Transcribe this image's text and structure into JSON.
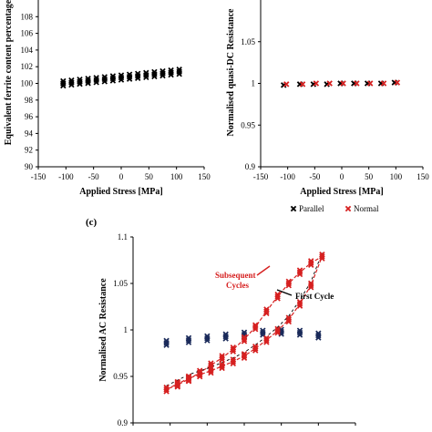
{
  "chart_data": [
    {
      "id": "a",
      "type": "scatter",
      "panel_label": "",
      "xlabel": "Applied Stress [MPa]",
      "ylabel": "Equivalent ferrite content percentage",
      "xlim": [
        -150,
        150
      ],
      "ylim": [
        90,
        110
      ],
      "x_ticks": [
        "-150",
        "-100",
        "-50",
        "0",
        "50",
        "100",
        "150"
      ],
      "y_ticks": [
        "90",
        "92",
        "94",
        "96",
        "98",
        "100",
        "102",
        "104",
        "106",
        "108"
      ],
      "series": [
        {
          "color": "#000000",
          "points": [
            [
              -105,
              100.0
            ],
            [
              -90,
              100.1
            ],
            [
              -75,
              100.2
            ],
            [
              -60,
              100.3
            ],
            [
              -45,
              100.4
            ],
            [
              -30,
              100.5
            ],
            [
              -15,
              100.6
            ],
            [
              0,
              100.7
            ],
            [
              15,
              100.8
            ],
            [
              30,
              100.9
            ],
            [
              45,
              101.0
            ],
            [
              60,
              101.1
            ],
            [
              75,
              101.2
            ],
            [
              90,
              101.3
            ],
            [
              105,
              101.4
            ]
          ]
        }
      ]
    },
    {
      "id": "b",
      "type": "scatter",
      "panel_label": "",
      "xlabel": "Applied Stress [MPa]",
      "ylabel": "Normalised quasi-DC Resistance",
      "xlim": [
        -150,
        150
      ],
      "ylim": [
        0.9,
        1.1
      ],
      "x_ticks": [
        "-150",
        "-100",
        "-50",
        "0",
        "50",
        "100",
        "150"
      ],
      "y_ticks": [
        "0.9",
        "0.95",
        "1",
        "1.05"
      ],
      "legend": [
        {
          "label": "Parallel",
          "color": "#000000"
        },
        {
          "label": "Normal",
          "color": "#d62020"
        }
      ],
      "series": [
        {
          "name": "Parallel",
          "color": "#000000",
          "points": [
            [
              -105,
              0.998
            ],
            [
              -75,
              0.999
            ],
            [
              -50,
              0.999
            ],
            [
              -25,
              0.999
            ],
            [
              0,
              1.0
            ],
            [
              25,
              1.0
            ],
            [
              50,
              1.0
            ],
            [
              75,
              1.0
            ],
            [
              100,
              1.001
            ]
          ]
        },
        {
          "name": "Normal",
          "color": "#d62020",
          "points": [
            [
              -105,
              0.999
            ],
            [
              -75,
              0.999
            ],
            [
              -50,
              1.0
            ],
            [
              -25,
              1.0
            ],
            [
              0,
              1.0
            ],
            [
              25,
              1.0
            ],
            [
              50,
              1.0
            ],
            [
              75,
              1.0
            ],
            [
              100,
              1.001
            ]
          ]
        }
      ]
    },
    {
      "id": "c",
      "type": "scatter",
      "panel_label": "(c)",
      "xlabel": "",
      "ylabel": "Normalised AC Resistance",
      "xlim": [
        -150,
        150
      ],
      "ylim": [
        0.9,
        1.1
      ],
      "y_ticks": [
        "0.9",
        "0.95",
        "1",
        "1.05",
        "1.1"
      ],
      "annotations": [
        {
          "text": "Subsequent",
          "color": "#d62020"
        },
        {
          "text": "Cycles",
          "color": "#d62020"
        },
        {
          "text": "First Cycle",
          "color": "#000000"
        }
      ],
      "series": [
        {
          "name": "Parallel",
          "color": "#1a2a5a",
          "points": [
            [
              -105,
              0.986
            ],
            [
              -75,
              0.989
            ],
            [
              -50,
              0.991
            ],
            [
              -25,
              0.993
            ],
            [
              0,
              0.995
            ],
            [
              25,
              0.997
            ],
            [
              50,
              0.998
            ],
            [
              75,
              0.997
            ],
            [
              100,
              0.994
            ]
          ]
        },
        {
          "name": "Normal",
          "color": "#d62020",
          "points": [
            [
              -105,
              0.936
            ],
            [
              -90,
              0.942
            ],
            [
              -75,
              0.948
            ],
            [
              -60,
              0.952
            ],
            [
              -45,
              0.956
            ],
            [
              -30,
              0.961
            ],
            [
              -15,
              0.966
            ],
            [
              0,
              0.972
            ],
            [
              15,
              0.98
            ],
            [
              30,
              0.989
            ],
            [
              45,
              0.999
            ],
            [
              60,
              1.011
            ],
            [
              75,
              1.028
            ],
            [
              90,
              1.048
            ],
            [
              105,
              1.079
            ],
            [
              90,
              1.072
            ],
            [
              75,
              1.062
            ],
            [
              60,
              1.05
            ],
            [
              45,
              1.036
            ],
            [
              30,
              1.02
            ],
            [
              15,
              1.003
            ],
            [
              0,
              0.99
            ],
            [
              -15,
              0.979
            ],
            [
              -30,
              0.97
            ],
            [
              -45,
              0.962
            ],
            [
              -60,
              0.954
            ],
            [
              -75,
              0.947
            ],
            [
              -90,
              0.941
            ]
          ]
        }
      ]
    }
  ]
}
